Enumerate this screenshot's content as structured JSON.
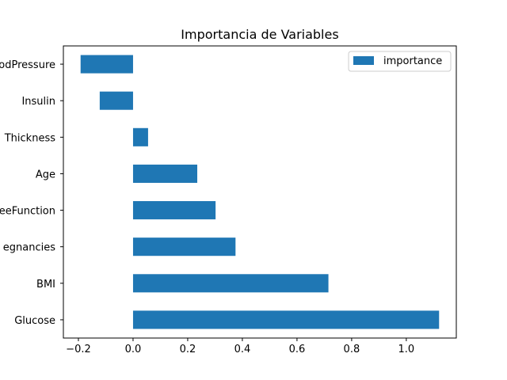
{
  "chart_data": {
    "type": "bar",
    "orientation": "horizontal",
    "title": "Importancia de Variables",
    "xlabel": "",
    "ylabel": "",
    "categories": [
      "Glucose",
      "BMI",
      "Pregnancies",
      "DiabetesPedigreeFunction",
      "Age",
      "SkinThickness",
      "Insulin",
      "BloodPressure"
    ],
    "category_labels_visible": [
      "Glucose",
      "BMI",
      "egnancies",
      "eeFunction",
      "Age",
      "Thickness",
      "Insulin",
      "odPressure"
    ],
    "series": [
      {
        "name": "importance",
        "values": [
          1.12,
          0.715,
          0.375,
          0.302,
          0.235,
          0.055,
          -0.122,
          -0.192
        ]
      }
    ],
    "xlim": [
      -0.255,
      1.183
    ],
    "xticks": [
      -0.2,
      0.0,
      0.2,
      0.4,
      0.6,
      0.8,
      1.0
    ],
    "xtick_labels": [
      "−0.2",
      "0.0",
      "0.2",
      "0.4",
      "0.6",
      "0.8",
      "1.0"
    ],
    "color": "#1f77b4",
    "grid": false,
    "legend_position": "top-right"
  }
}
